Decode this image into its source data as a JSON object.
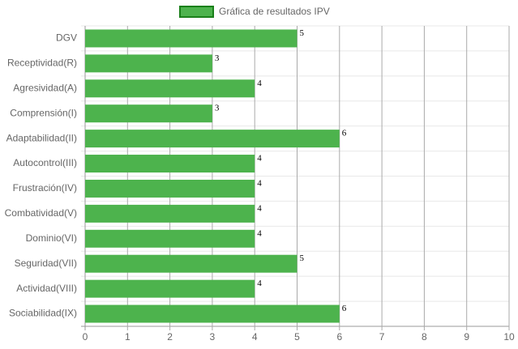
{
  "chart_data": {
    "type": "bar",
    "orientation": "horizontal",
    "legend": "Gráfica de resultados IPV",
    "categories": [
      "DGV",
      "Receptividad(R)",
      "Agresividad(A)",
      "Comprensión(I)",
      "Adaptabilidad(II)",
      "Autocontrol(III)",
      "Frustración(IV)",
      "Combatividad(V)",
      "Dominio(VI)",
      "Seguridad(VII)",
      "Actividad(VIII)",
      "Sociabilidad(IX)"
    ],
    "values": [
      5,
      3,
      4,
      3,
      6,
      4,
      4,
      4,
      4,
      5,
      4,
      6
    ],
    "color": "#4db34d",
    "border_color": "#1a801a",
    "xlim": [
      0,
      10
    ],
    "xticks": [
      0,
      1,
      2,
      3,
      4,
      5,
      6,
      7,
      8,
      9,
      10
    ],
    "grid": true
  }
}
